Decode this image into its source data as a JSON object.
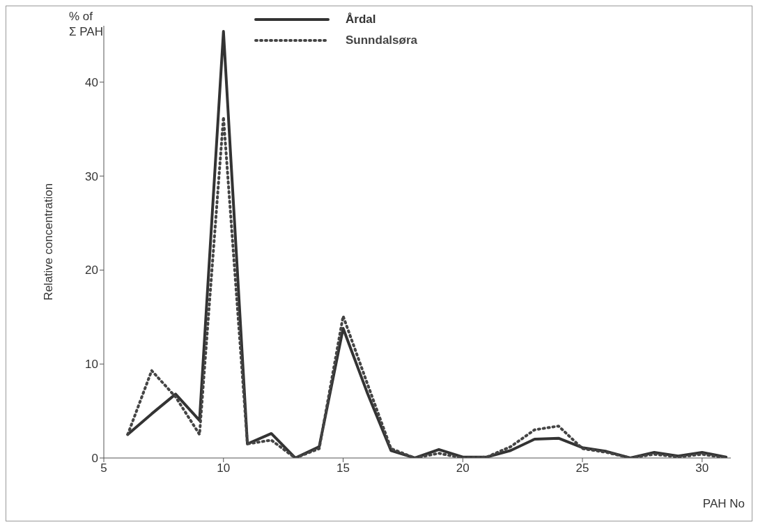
{
  "chart_data": {
    "type": "line",
    "xlabel": "PAH No",
    "ylabel": "Relative concentration",
    "annotations": [
      "% of\nΣ PAH"
    ],
    "x": [
      6,
      7,
      8,
      9,
      10,
      11,
      12,
      13,
      14,
      15,
      16,
      17,
      18,
      19,
      20,
      21,
      22,
      23,
      24,
      25,
      26,
      27,
      28,
      29,
      30,
      31
    ],
    "series": [
      {
        "name": "Årdal",
        "color": "#333333",
        "line_style": "solid",
        "values": [
          2.5,
          4.7,
          6.8,
          4.0,
          45.4,
          1.5,
          2.6,
          0,
          1.2,
          13.8,
          7,
          0.8,
          0,
          0.9,
          0.1,
          0.1,
          0.8,
          2.0,
          2.1,
          1.1,
          0.7,
          0,
          0.6,
          0.2,
          0.6,
          0.1
        ]
      },
      {
        "name": "Sunndalsøra",
        "color": "#444444",
        "line_style": "dotted",
        "values": [
          2.5,
          9.3,
          6.5,
          2.5,
          36.3,
          1.5,
          1.9,
          0,
          1.0,
          15.1,
          8,
          1,
          0,
          0.5,
          0,
          0.1,
          1.2,
          3.0,
          3.4,
          1.0,
          0.6,
          0,
          0.4,
          0.1,
          0.4,
          0
        ]
      }
    ],
    "xlim": [
      5,
      31.2
    ],
    "xticks": [
      5,
      10,
      15,
      20,
      25,
      30
    ],
    "ylim": [
      0,
      46
    ],
    "yticks": [
      0,
      10,
      20,
      30,
      40
    ],
    "grid": false,
    "legend": "top",
    "marker": "none"
  }
}
